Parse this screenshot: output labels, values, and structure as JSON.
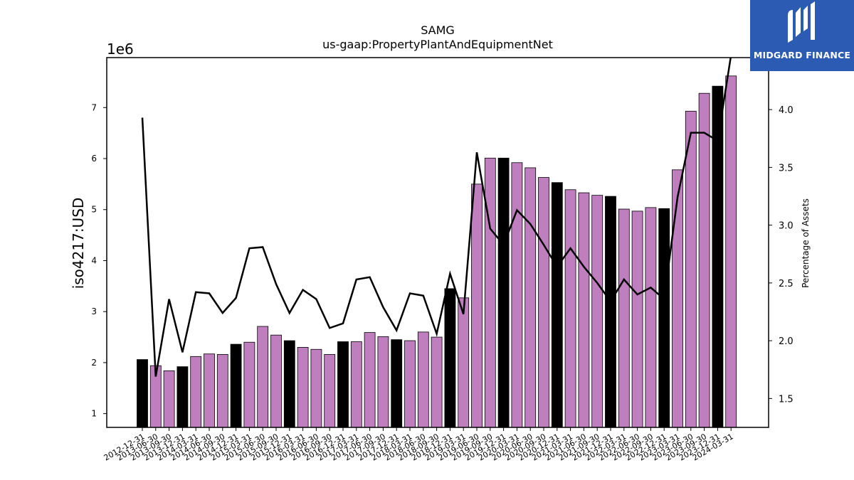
{
  "chart_data": {
    "type": "bar",
    "title": "SAMG",
    "subtitle": "us-gaap:PropertyPlantAndEquipmentNet",
    "ylabel": "iso4217:USD",
    "y_offset_label": "1e6",
    "y2label": "Percentage of Assets",
    "ylim": [
      0.73,
      7.98
    ],
    "y2lim": [
      1.25,
      4.45
    ],
    "yticks": [
      1,
      2,
      3,
      4,
      5,
      6,
      7
    ],
    "y2ticks": [
      "1.5",
      "2.0",
      "2.5",
      "3.0",
      "3.5",
      "4.0"
    ],
    "colors": {
      "quarter_bar": "#bf7fbf",
      "year_end_bar": "#000000",
      "line": "#000000"
    },
    "categories": [
      "2012-12-31",
      "2013-06-30",
      "2013-09-30",
      "2013-12-31",
      "2014-03-31",
      "2014-06-30",
      "2014-09-30",
      "2014-12-31",
      "2015-03-31",
      "2015-06-30",
      "2015-09-30",
      "2015-12-31",
      "2016-03-31",
      "2016-06-30",
      "2016-09-30",
      "2016-12-31",
      "2017-03-31",
      "2017-06-30",
      "2017-09-30",
      "2017-12-31",
      "2018-03-31",
      "2018-06-30",
      "2018-09-30",
      "2018-12-31",
      "2019-03-31",
      "2019-06-30",
      "2019-09-30",
      "2019-12-31",
      "2020-03-31",
      "2020-06-30",
      "2020-09-30",
      "2020-12-31",
      "2021-03-31",
      "2021-06-30",
      "2021-09-30",
      "2021-12-31",
      "2022-03-31",
      "2022-06-30",
      "2022-09-30",
      "2022-12-31",
      "2023-03-31",
      "2023-06-30",
      "2023-09-30",
      "2023-12-31",
      "2024-03-31"
    ],
    "series": [
      {
        "values": [
          2.06,
          1.94,
          1.84,
          1.92,
          2.12,
          2.17,
          2.16,
          2.36,
          2.4,
          2.71,
          2.54,
          2.43,
          2.3,
          2.26,
          2.16,
          2.41,
          2.41,
          2.59,
          2.51,
          2.45,
          2.43,
          2.6,
          2.5,
          3.45,
          3.27,
          5.5,
          6.01,
          6.01,
          5.92,
          5.82,
          5.63,
          5.53,
          5.39,
          5.33,
          5.28,
          5.26,
          5.01,
          4.97,
          5.04,
          5.02,
          5.78,
          6.93,
          7.28,
          7.42,
          7.62
        ],
        "year_end": [
          true,
          false,
          false,
          true,
          false,
          false,
          false,
          true,
          false,
          false,
          false,
          true,
          false,
          false,
          false,
          true,
          false,
          false,
          false,
          true,
          false,
          false,
          false,
          true,
          false,
          false,
          false,
          true,
          false,
          false,
          false,
          true,
          false,
          false,
          false,
          true,
          false,
          false,
          false,
          true,
          false,
          false,
          false,
          true,
          false
        ]
      },
      {
        "axis": "right",
        "values": [
          3.93,
          1.69,
          2.36,
          1.9,
          2.42,
          2.41,
          2.24,
          2.37,
          2.8,
          2.81,
          2.49,
          2.24,
          2.44,
          2.36,
          2.11,
          2.15,
          2.53,
          2.55,
          2.29,
          2.09,
          2.41,
          2.39,
          2.06,
          2.58,
          2.23,
          3.63,
          2.97,
          2.83,
          3.13,
          3.01,
          2.83,
          2.64,
          2.8,
          2.64,
          2.5,
          2.34,
          2.53,
          2.4,
          2.46,
          2.36,
          3.24,
          3.8,
          3.8,
          3.73,
          4.47
        ]
      }
    ]
  },
  "branding": {
    "logo_text": "MIDGARD FINANCE"
  }
}
